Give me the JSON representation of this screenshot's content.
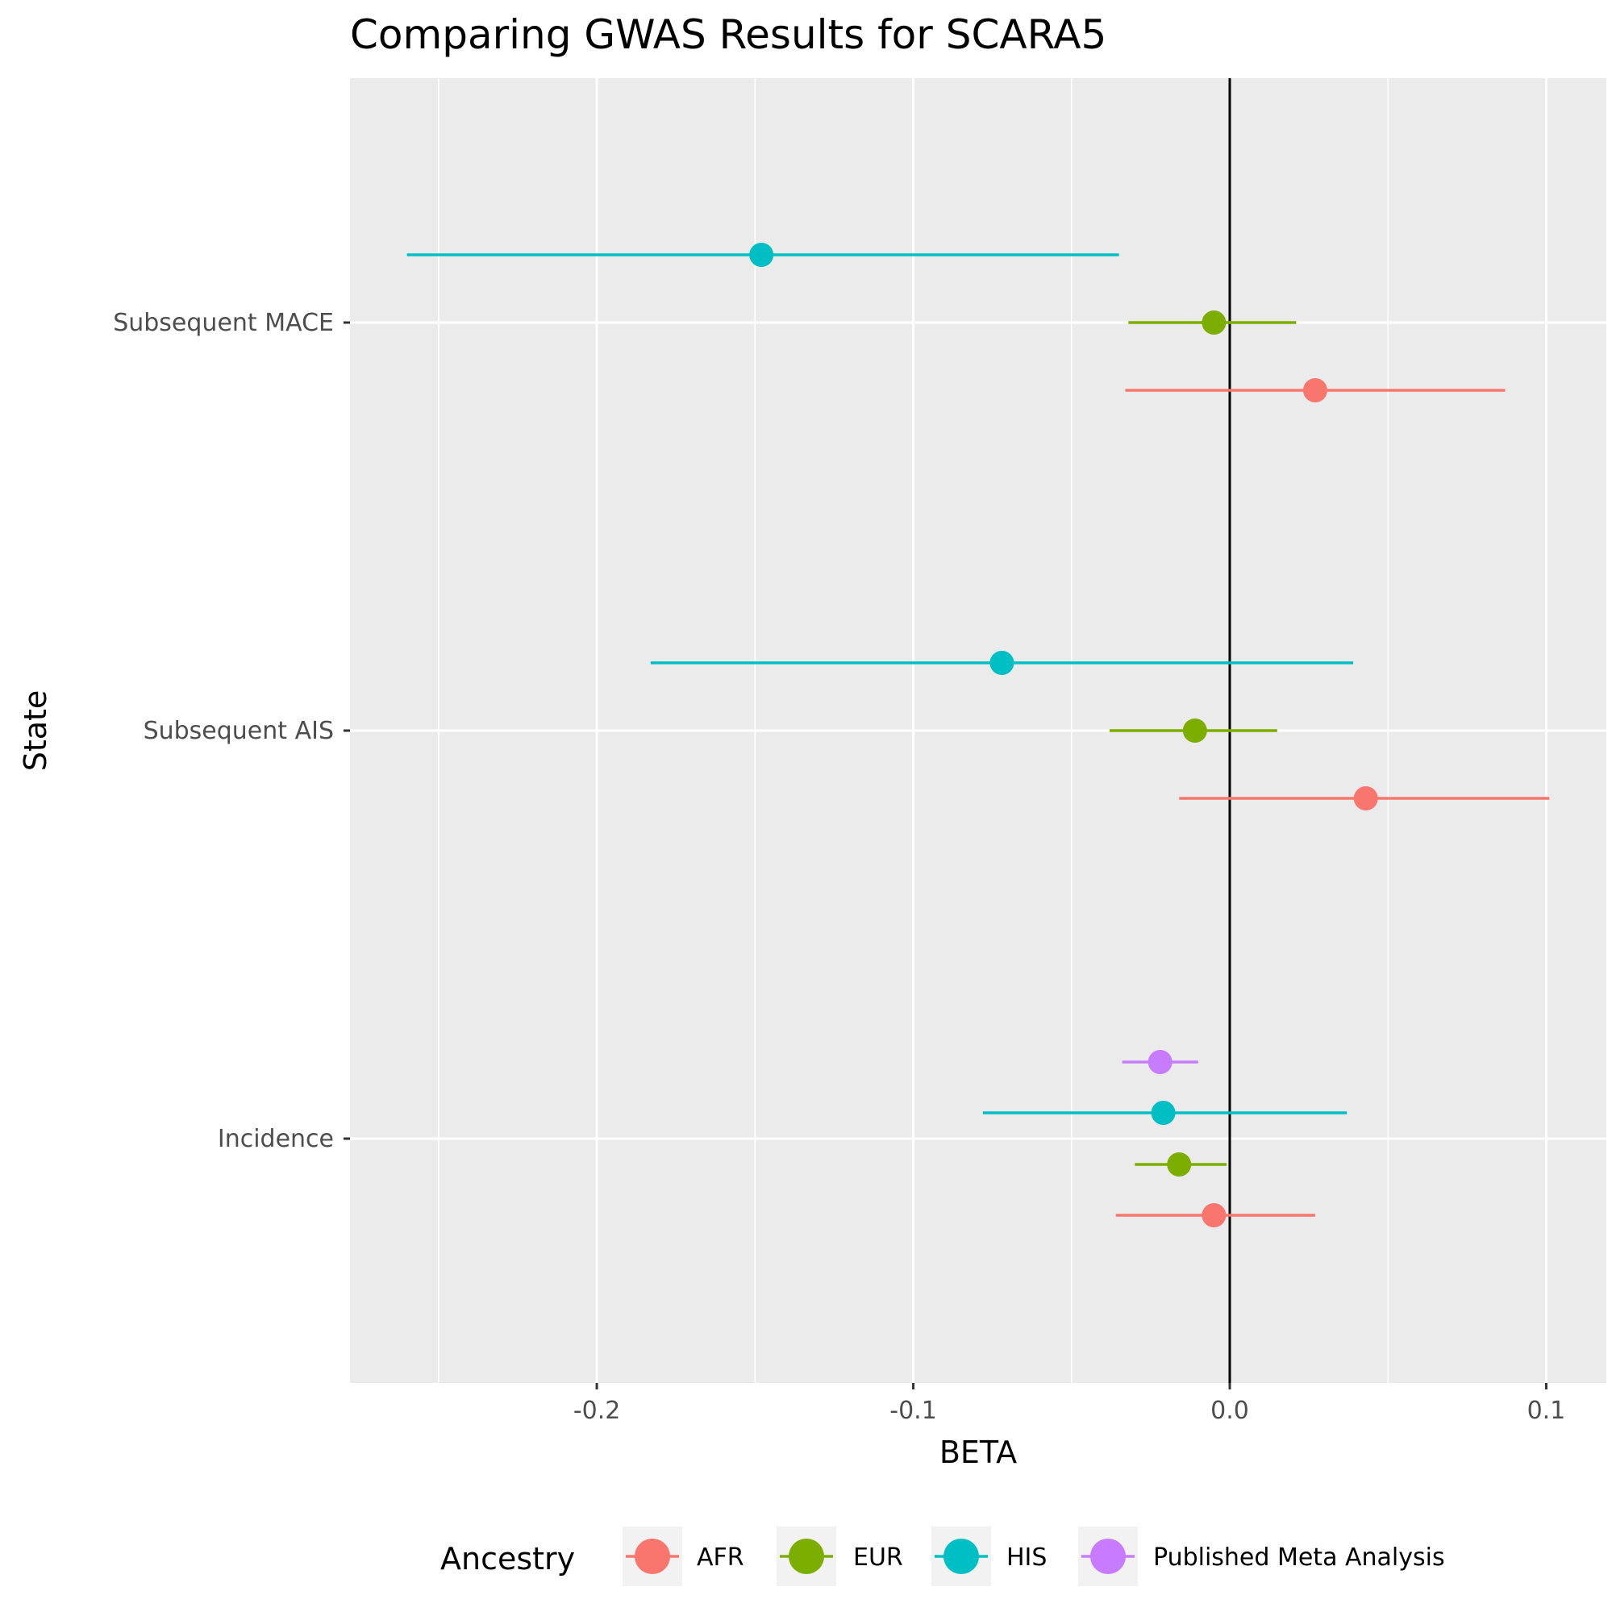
{
  "chart_data": {
    "type": "scatter",
    "subtype": "forest-plot",
    "title": "Comparing GWAS Results for SCARA5",
    "xlabel": "BETA",
    "ylabel": "State",
    "xlim": [
      -0.278,
      0.119
    ],
    "x_ticks": [
      -0.2,
      -0.1,
      0.0,
      0.1
    ],
    "x_tick_labels": [
      "-0.2",
      "-0.1",
      "0.0",
      "0.1"
    ],
    "categories": [
      "Subsequent MACE",
      "Subsequent AIS",
      "Incidence"
    ],
    "reference_line_x": 0,
    "grid": true,
    "legend": {
      "title": "Ancestry",
      "position": "bottom",
      "entries": [
        "AFR",
        "EUR",
        "HIS",
        "Published Meta Analysis"
      ]
    },
    "series": [
      {
        "name": "AFR",
        "color": "#F8766D",
        "points": [
          {
            "category": "Subsequent MACE",
            "beta": 0.027,
            "lower": -0.033,
            "upper": 0.087
          },
          {
            "category": "Subsequent AIS",
            "beta": 0.043,
            "lower": -0.016,
            "upper": 0.101
          },
          {
            "category": "Incidence",
            "beta": -0.005,
            "lower": -0.036,
            "upper": 0.027
          }
        ]
      },
      {
        "name": "EUR",
        "color": "#7CAE00",
        "points": [
          {
            "category": "Subsequent MACE",
            "beta": -0.005,
            "lower": -0.032,
            "upper": 0.021
          },
          {
            "category": "Subsequent AIS",
            "beta": -0.011,
            "lower": -0.038,
            "upper": 0.015
          },
          {
            "category": "Incidence",
            "beta": -0.016,
            "lower": -0.03,
            "upper": -0.001
          }
        ]
      },
      {
        "name": "HIS",
        "color": "#00BFC4",
        "points": [
          {
            "category": "Subsequent MACE",
            "beta": -0.148,
            "lower": -0.26,
            "upper": -0.035
          },
          {
            "category": "Subsequent AIS",
            "beta": -0.072,
            "lower": -0.183,
            "upper": 0.039
          },
          {
            "category": "Incidence",
            "beta": -0.021,
            "lower": -0.078,
            "upper": 0.037
          }
        ]
      },
      {
        "name": "Published Meta Analysis",
        "color": "#C77CFF",
        "points": [
          {
            "category": "Incidence",
            "beta": -0.022,
            "lower": -0.034,
            "upper": -0.01
          }
        ]
      }
    ]
  }
}
